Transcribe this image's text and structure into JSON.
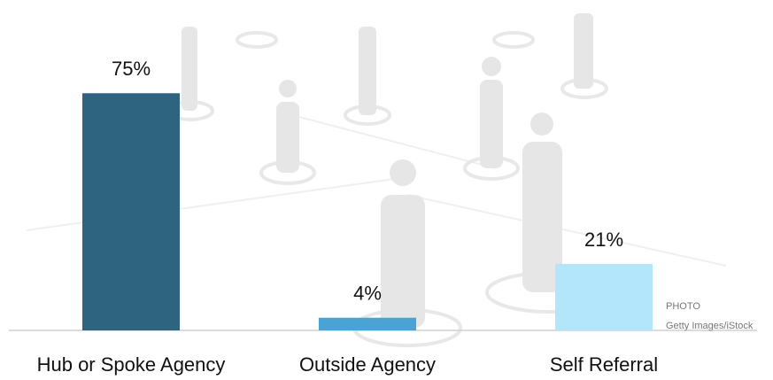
{
  "chart_data": {
    "type": "bar",
    "categories": [
      "Hub or Spoke Agency",
      "Outside Agency",
      "Self Referral"
    ],
    "values": [
      75,
      4,
      21
    ],
    "value_labels": [
      "75%",
      "4%",
      "21%"
    ],
    "colors": [
      "#2e6480",
      "#4aa3d3",
      "#b3e5fb"
    ],
    "annotations": [
      "PHOTO",
      "Getty Images/iStock"
    ]
  }
}
